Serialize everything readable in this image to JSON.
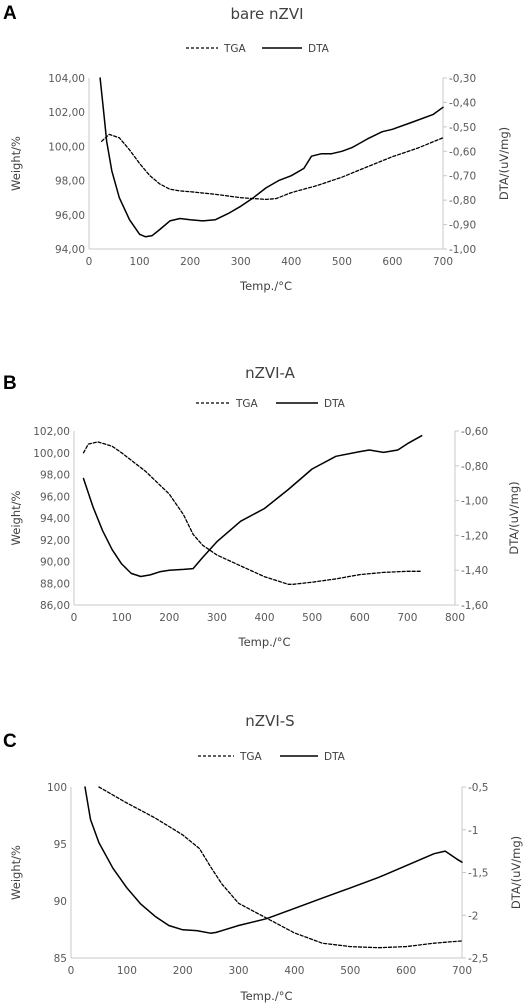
{
  "panels": [
    {
      "label": "A",
      "title": "bare nZVI",
      "legend": {
        "tga": "TGA",
        "dta": "DTA"
      }
    },
    {
      "label": "B",
      "title": "nZVI-A",
      "legend": {
        "tga": "TGA",
        "dta": "DTA"
      }
    },
    {
      "label": "C",
      "title": "nZVI-S",
      "legend": {
        "tga": "TGA",
        "dta": "DTA"
      }
    }
  ],
  "chart_data": [
    {
      "type": "line",
      "title": "bare nZVI",
      "xlabel": "Temp./°C",
      "ylabel": "Weight/%",
      "y2label": "DTA/(uV/mg)",
      "xlim": [
        0,
        700
      ],
      "ylim": [
        94,
        104
      ],
      "y2lim": [
        -1.0,
        -0.3
      ],
      "xticks": [
        "0",
        "100",
        "200",
        "300",
        "400",
        "500",
        "600",
        "700"
      ],
      "yticks": [
        "94,00",
        "96,00",
        "98,00",
        "100,00",
        "102,00",
        "104,00"
      ],
      "y2ticks": [
        "-1,00",
        "-0,90",
        "-0,80",
        "-0,70",
        "-0,60",
        "-0,50",
        "-0,40",
        "-0,30"
      ],
      "legend_position": "top",
      "series": [
        {
          "name": "TGA",
          "axis": "left",
          "style": "dashed",
          "x": [
            25,
            40,
            60,
            80,
            100,
            120,
            140,
            160,
            180,
            200,
            250,
            300,
            350,
            370,
            400,
            450,
            500,
            550,
            600,
            650,
            700
          ],
          "y": [
            100.3,
            100.7,
            100.5,
            99.8,
            99.0,
            98.3,
            97.8,
            97.5,
            97.4,
            97.35,
            97.2,
            97.0,
            96.9,
            96.95,
            97.3,
            97.7,
            98.2,
            98.8,
            99.4,
            99.9,
            100.5
          ]
        },
        {
          "name": "DTA",
          "axis": "right",
          "style": "solid",
          "x": [
            22,
            28,
            35,
            45,
            60,
            80,
            100,
            112,
            125,
            140,
            160,
            180,
            200,
            225,
            250,
            275,
            300,
            325,
            350,
            375,
            400,
            425,
            440,
            460,
            480,
            500,
            520,
            550,
            580,
            600,
            640,
            680,
            700
          ],
          "y": [
            -0.3,
            -0.42,
            -0.56,
            -0.68,
            -0.79,
            -0.88,
            -0.94,
            -0.95,
            -0.945,
            -0.92,
            -0.885,
            -0.875,
            -0.88,
            -0.885,
            -0.88,
            -0.855,
            -0.825,
            -0.79,
            -0.75,
            -0.72,
            -0.7,
            -0.67,
            -0.62,
            -0.61,
            -0.61,
            -0.6,
            -0.585,
            -0.55,
            -0.52,
            -0.51,
            -0.48,
            -0.45,
            -0.42
          ]
        }
      ]
    },
    {
      "type": "line",
      "title": "nZVI-A",
      "xlabel": "Temp./°C",
      "ylabel": "Weight/%",
      "y2label": "DTA/(uV/mg)",
      "xlim": [
        0,
        800
      ],
      "ylim": [
        86,
        102
      ],
      "y2lim": [
        -1.6,
        -0.5
      ],
      "xticks": [
        "0",
        "100",
        "200",
        "300",
        "400",
        "500",
        "600",
        "700",
        "800"
      ],
      "yticks": [
        "86,00",
        "88,00",
        "90,00",
        "92,00",
        "94,00",
        "96,00",
        "98,00",
        "100,00",
        "102,00"
      ],
      "y2ticks": [
        "-1,60",
        "-1,40",
        "-1,20",
        "-1,00",
        "-0,80",
        "-0,60"
      ],
      "legend_position": "top",
      "series": [
        {
          "name": "TGA",
          "axis": "left",
          "style": "dashed",
          "x": [
            20,
            30,
            50,
            80,
            100,
            150,
            200,
            230,
            250,
            270,
            300,
            350,
            400,
            450,
            460,
            500,
            550,
            600,
            650,
            700,
            730
          ],
          "y": [
            100.0,
            100.8,
            101.0,
            100.6,
            100.0,
            98.3,
            96.2,
            94.3,
            92.5,
            91.5,
            90.6,
            89.6,
            88.6,
            87.9,
            87.9,
            88.1,
            88.4,
            88.8,
            89.0,
            89.1,
            89.1
          ]
        },
        {
          "name": "DTA",
          "axis": "right",
          "style": "solid",
          "x": [
            20,
            40,
            60,
            80,
            100,
            120,
            140,
            160,
            180,
            200,
            230,
            250,
            270,
            300,
            350,
            400,
            450,
            500,
            550,
            600,
            620,
            650,
            680,
            700,
            730
          ],
          "y": [
            -0.8,
            -0.98,
            -1.13,
            -1.25,
            -1.34,
            -1.4,
            -1.42,
            -1.41,
            -1.39,
            -1.38,
            -1.375,
            -1.37,
            -1.3,
            -1.2,
            -1.07,
            -0.99,
            -0.87,
            -0.74,
            -0.66,
            -0.63,
            -0.62,
            -0.635,
            -0.62,
            -0.58,
            -0.53
          ]
        }
      ]
    },
    {
      "type": "line",
      "title": "nZVI-S",
      "xlabel": "Temp./°C",
      "ylabel": "Weight/%",
      "y2label": "DTA/(uV/mg)",
      "xlim": [
        0,
        700
      ],
      "ylim": [
        85,
        100
      ],
      "y2lim": [
        -2.5,
        -0.5
      ],
      "xticks": [
        "0",
        "100",
        "200",
        "300",
        "400",
        "500",
        "600",
        "700"
      ],
      "yticks": [
        "85",
        "90",
        "95",
        "100"
      ],
      "y2ticks": [
        "-2,5",
        "-2",
        "-1,5",
        "-1",
        "-0,5"
      ],
      "legend_position": "top",
      "series": [
        {
          "name": "TGA",
          "axis": "left",
          "style": "dashed",
          "x": [
            50,
            100,
            150,
            200,
            230,
            250,
            270,
            300,
            350,
            400,
            450,
            500,
            550,
            600,
            650,
            700
          ],
          "y": [
            100.0,
            98.6,
            97.3,
            95.8,
            94.6,
            93.0,
            91.5,
            89.8,
            88.5,
            87.2,
            86.3,
            86.0,
            85.9,
            86.0,
            86.3,
            86.5
          ]
        },
        {
          "name": "DTA",
          "axis": "right",
          "style": "solid",
          "x": [
            25,
            35,
            50,
            75,
            100,
            125,
            150,
            175,
            200,
            225,
            250,
            260,
            275,
            300,
            350,
            400,
            450,
            500,
            550,
            600,
            650,
            670,
            690,
            700
          ],
          "y": [
            -0.5,
            -0.88,
            -1.15,
            -1.45,
            -1.68,
            -1.87,
            -2.01,
            -2.12,
            -2.17,
            -2.18,
            -2.21,
            -2.2,
            -2.17,
            -2.12,
            -2.04,
            -1.92,
            -1.8,
            -1.68,
            -1.56,
            -1.42,
            -1.28,
            -1.25,
            -1.34,
            -1.38
          ]
        }
      ]
    }
  ]
}
